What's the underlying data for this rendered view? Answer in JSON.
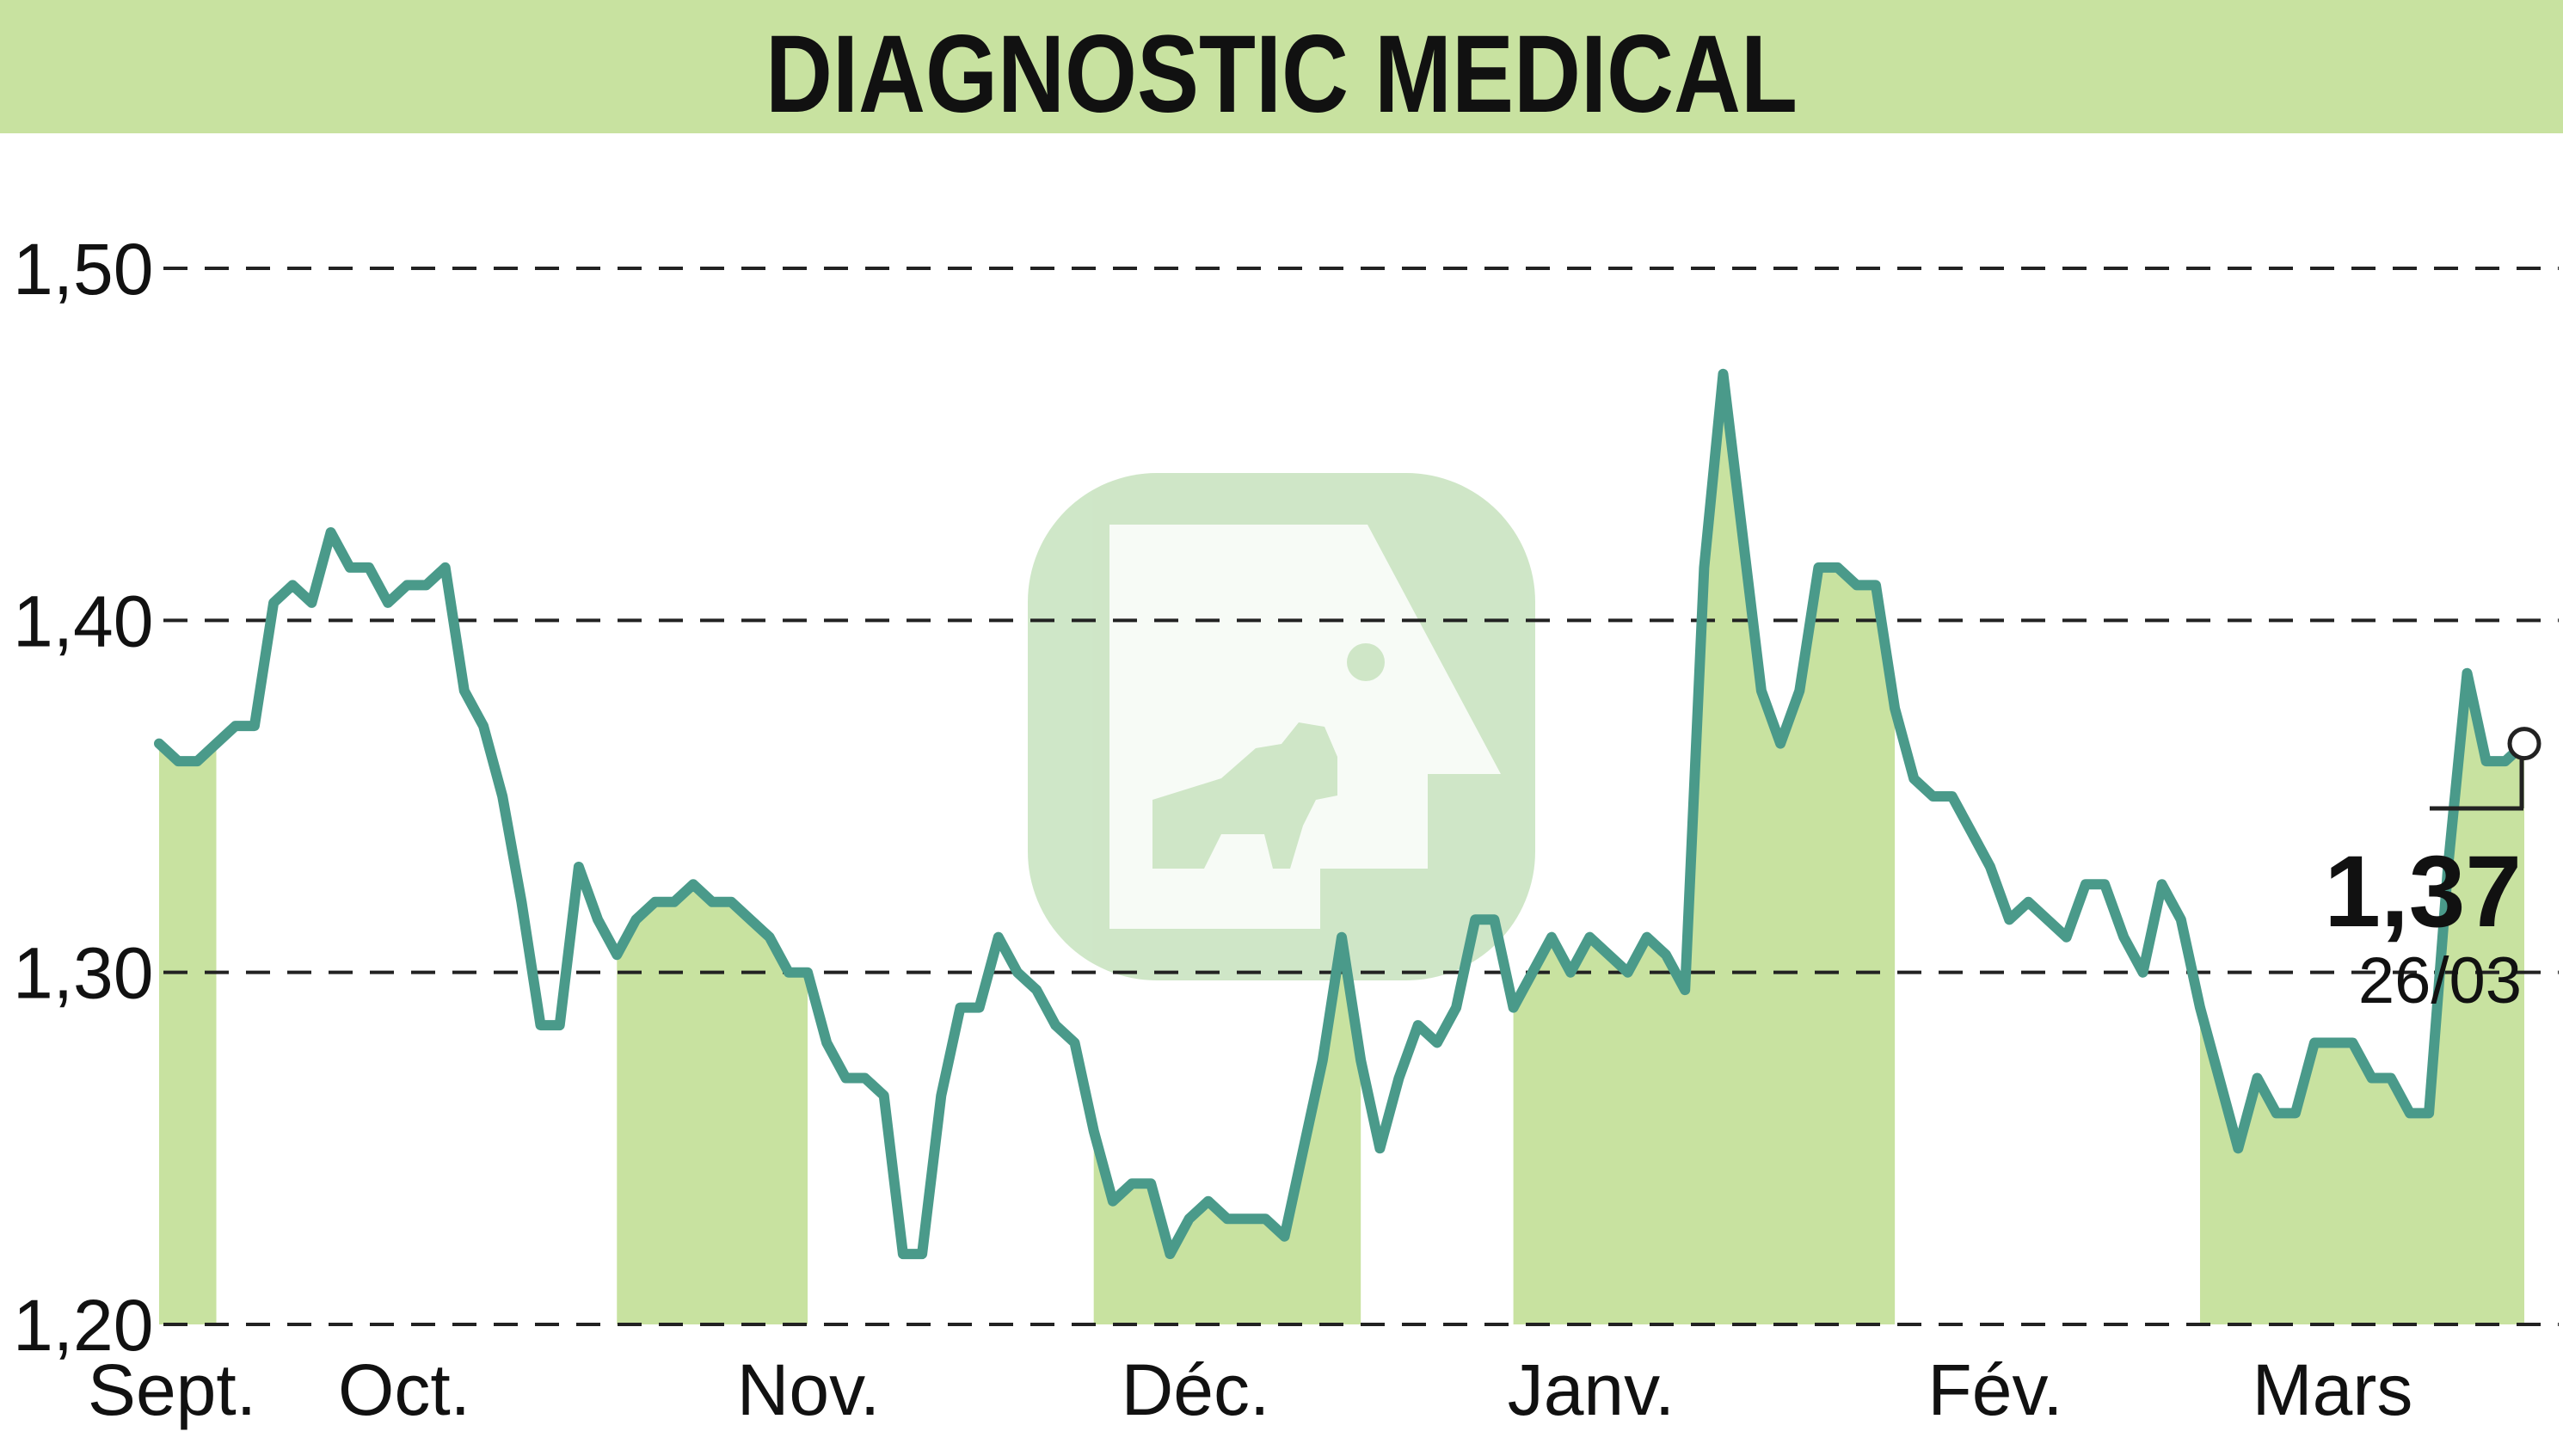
{
  "chart_data": {
    "type": "line",
    "title": "DIAGNOSTIC MEDICAL",
    "xlabel": "",
    "ylabel": "",
    "x_tick_labels": [
      "Sept.",
      "Oct.",
      "Nov.",
      "Déc.",
      "Janv.",
      "Fév.",
      "Mars"
    ],
    "y_ticks": [
      "1,20",
      "1,30",
      "1,40",
      "1,50"
    ],
    "y_tick_values": [
      1.2,
      1.3,
      1.4,
      1.5
    ],
    "ylim": [
      1.2,
      1.5
    ],
    "grid": "horizontal dashed",
    "values": [
      1.365,
      1.36,
      1.36,
      1.365,
      1.37,
      1.37,
      1.405,
      1.41,
      1.405,
      1.425,
      1.415,
      1.415,
      1.405,
      1.41,
      1.41,
      1.415,
      1.38,
      1.37,
      1.35,
      1.32,
      1.285,
      1.285,
      1.33,
      1.315,
      1.305,
      1.315,
      1.32,
      1.32,
      1.325,
      1.32,
      1.32,
      1.315,
      1.31,
      1.3,
      1.3,
      1.28,
      1.27,
      1.27,
      1.265,
      1.22,
      1.22,
      1.265,
      1.29,
      1.29,
      1.31,
      1.3,
      1.295,
      1.285,
      1.28,
      1.255,
      1.235,
      1.24,
      1.24,
      1.22,
      1.23,
      1.235,
      1.23,
      1.23,
      1.23,
      1.225,
      1.25,
      1.275,
      1.31,
      1.275,
      1.25,
      1.27,
      1.285,
      1.28,
      1.29,
      1.315,
      1.315,
      1.29,
      1.3,
      1.31,
      1.3,
      1.31,
      1.305,
      1.3,
      1.31,
      1.305,
      1.295,
      1.415,
      1.47,
      1.425,
      1.38,
      1.365,
      1.38,
      1.415,
      1.415,
      1.41,
      1.41,
      1.375,
      1.355,
      1.35,
      1.35,
      1.34,
      1.33,
      1.315,
      1.32,
      1.315,
      1.31,
      1.325,
      1.325,
      1.31,
      1.3,
      1.325,
      1.315,
      1.29,
      1.27,
      1.25,
      1.27,
      1.26,
      1.26,
      1.28,
      1.28,
      1.28,
      1.27,
      1.27,
      1.26,
      1.26,
      1.33,
      1.385,
      1.36,
      1.36,
      1.365
    ],
    "last_value": "1,37",
    "last_date": "26/03",
    "colors": {
      "line": "#4a9a8a",
      "fill": "#c8e2a0",
      "title_bar": "#c8e2a0",
      "grid": "#222222"
    }
  }
}
